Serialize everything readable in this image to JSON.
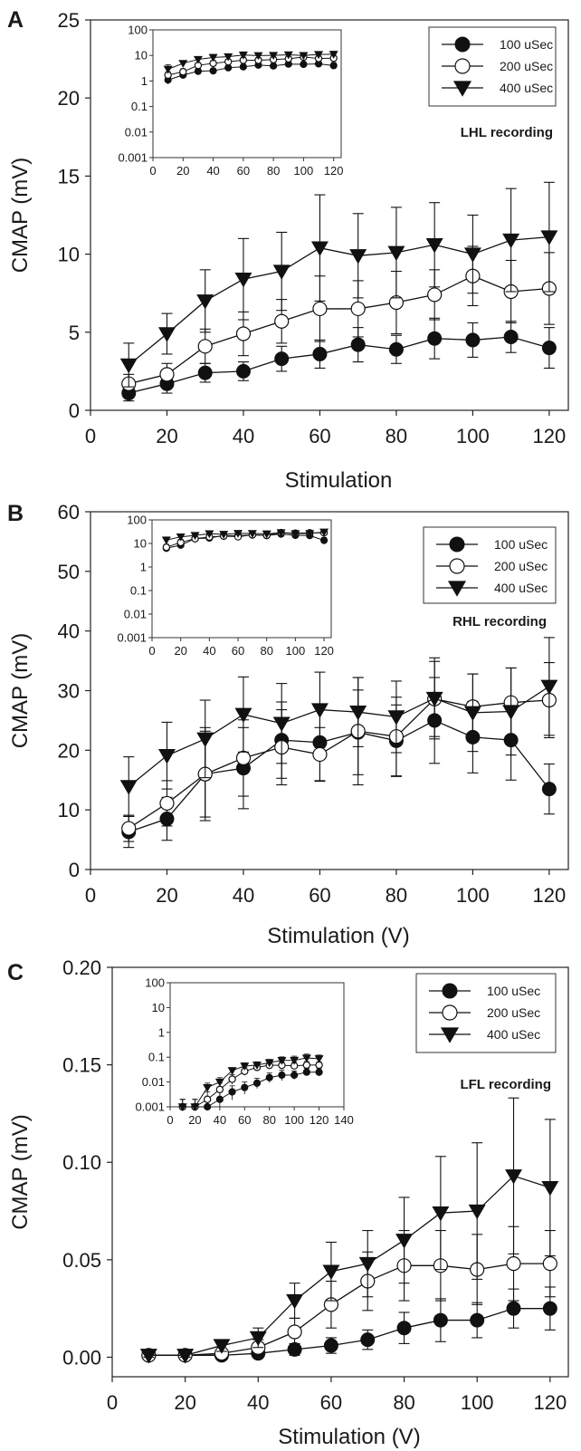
{
  "chart_data": [
    {
      "panel_letter": "A",
      "type": "line",
      "xlabel": "Stimulation",
      "ylabel": "CMAP (mV)",
      "xlim": [
        0,
        125
      ],
      "ylim": [
        0,
        25
      ],
      "xticks": [
        0,
        20,
        40,
        60,
        80,
        100,
        120
      ],
      "yticks": [
        0,
        5,
        10,
        15,
        20,
        25
      ],
      "x": [
        10,
        20,
        30,
        40,
        50,
        60,
        70,
        80,
        90,
        100,
        110,
        120
      ],
      "annotation": "LHL recording",
      "legend_position": "top-right",
      "series": [
        {
          "name": "100 uSec",
          "marker": "filled-circle",
          "values": [
            1.1,
            1.7,
            2.4,
            2.5,
            3.3,
            3.6,
            4.2,
            3.9,
            4.6,
            4.5,
            4.7,
            4.0
          ],
          "errors": [
            0.5,
            0.6,
            0.6,
            0.6,
            0.8,
            0.9,
            1.1,
            0.9,
            1.3,
            1.1,
            1.0,
            1.3
          ]
        },
        {
          "name": "200 uSec",
          "marker": "open-circle",
          "values": [
            1.7,
            2.3,
            4.1,
            4.9,
            5.7,
            6.5,
            6.5,
            6.9,
            7.4,
            8.6,
            7.6,
            7.8
          ],
          "errors": [
            0.6,
            0.7,
            1.1,
            1.4,
            1.4,
            2.1,
            1.8,
            2.0,
            1.6,
            1.9,
            2.0,
            2.3
          ]
        },
        {
          "name": "400 uSec",
          "marker": "filled-triangle-down",
          "values": [
            2.9,
            4.9,
            7.0,
            8.4,
            8.9,
            10.4,
            9.9,
            10.1,
            10.6,
            10.0,
            10.9,
            11.1
          ],
          "errors": [
            1.4,
            1.3,
            2.0,
            2.6,
            2.5,
            3.4,
            2.7,
            2.9,
            2.7,
            2.5,
            3.3,
            3.5
          ]
        }
      ],
      "inset": {
        "scale": "log",
        "xlim": [
          0,
          125
        ],
        "xticks": [
          0,
          20,
          40,
          60,
          80,
          100,
          120
        ],
        "yticks": [
          0.001,
          0.01,
          0.1,
          1,
          10,
          100
        ],
        "ytick_labels": [
          "0.001",
          "0.01",
          "0.1",
          "1",
          "10",
          "100"
        ],
        "ylim": [
          0.001,
          100
        ]
      }
    },
    {
      "panel_letter": "B",
      "type": "line",
      "xlabel": "Stimulation (V)",
      "ylabel": "CMAP (mV)",
      "xlim": [
        0,
        125
      ],
      "ylim": [
        0,
        60
      ],
      "xticks": [
        0,
        20,
        40,
        60,
        80,
        100,
        120
      ],
      "yticks": [
        0,
        10,
        20,
        30,
        40,
        50,
        60
      ],
      "x": [
        10,
        20,
        30,
        40,
        50,
        60,
        70,
        80,
        90,
        100,
        110,
        120
      ],
      "annotation": "RHL recording",
      "legend_position": "top-right",
      "series": [
        {
          "name": "100 uSec",
          "marker": "filled-circle",
          "values": [
            6.3,
            8.5,
            16.0,
            17.0,
            21.7,
            21.3,
            23.0,
            21.6,
            25.0,
            22.2,
            21.7,
            13.5
          ],
          "errors": [
            2.6,
            3.6,
            7.8,
            6.8,
            6.4,
            6.4,
            7.1,
            6.0,
            7.2,
            6.0,
            6.7,
            4.2
          ]
        },
        {
          "name": "200 uSec",
          "marker": "open-circle",
          "values": [
            6.9,
            11.1,
            16.0,
            18.7,
            20.5,
            19.3,
            23.2,
            22.3,
            28.6,
            27.3,
            28.0,
            28.4
          ],
          "errors": [
            2.2,
            3.8,
            7.2,
            6.4,
            6.3,
            4.5,
            9.0,
            6.6,
            6.3,
            5.5,
            5.8,
            6.3
          ]
        },
        {
          "name": "400 uSec",
          "marker": "filled-triangle-down",
          "values": [
            13.9,
            19.1,
            21.9,
            26.0,
            24.5,
            26.8,
            26.4,
            25.6,
            28.7,
            26.3,
            26.5,
            30.7
          ],
          "errors": [
            5.0,
            5.6,
            6.5,
            6.3,
            6.7,
            6.3,
            5.8,
            6.0,
            6.8,
            6.5,
            7.3,
            8.2
          ]
        }
      ],
      "inset": {
        "scale": "log",
        "xlim": [
          0,
          125
        ],
        "xticks": [
          0,
          20,
          40,
          60,
          80,
          100,
          120
        ],
        "yticks": [
          0.001,
          0.01,
          0.1,
          1,
          10,
          100
        ],
        "ytick_labels": [
          "0.001",
          "0.01",
          "0.1",
          "1",
          "10",
          "100"
        ],
        "ylim": [
          0.001,
          100
        ]
      }
    },
    {
      "panel_letter": "C",
      "type": "line",
      "xlabel": "Stimulation (V)",
      "ylabel": "CMAP (mV)",
      "xlim": [
        0,
        125
      ],
      "ylim": [
        -0.01,
        0.2
      ],
      "xticks": [
        0,
        20,
        40,
        60,
        80,
        100,
        120
      ],
      "xtick_labels": [
        "0",
        "20",
        "40",
        "60",
        "80",
        "100",
        "120"
      ],
      "yticks": [
        0,
        0.05,
        0.1,
        0.15,
        0.2
      ],
      "ytick_labels": [
        "0.00",
        "0.05",
        "0.10",
        "0.15",
        "0.20"
      ],
      "x": [
        10,
        20,
        30,
        40,
        50,
        60,
        70,
        80,
        90,
        100,
        110,
        120
      ],
      "annotation": "LFL recording",
      "legend_position": "top-right",
      "series": [
        {
          "name": "100 uSec",
          "marker": "filled-circle",
          "values": [
            0.001,
            0.001,
            0.001,
            0.002,
            0.004,
            0.006,
            0.009,
            0.015,
            0.019,
            0.019,
            0.025,
            0.025
          ],
          "errors": [
            0.001,
            0.001,
            0.001,
            0.002,
            0.003,
            0.004,
            0.005,
            0.008,
            0.011,
            0.009,
            0.01,
            0.011
          ]
        },
        {
          "name": "200 uSec",
          "marker": "open-circle",
          "values": [
            0.001,
            0.001,
            0.002,
            0.005,
            0.013,
            0.027,
            0.039,
            0.047,
            0.047,
            0.045,
            0.048,
            0.048
          ],
          "errors": [
            0.001,
            0.001,
            0.002,
            0.004,
            0.007,
            0.012,
            0.015,
            0.018,
            0.018,
            0.018,
            0.019,
            0.017
          ]
        },
        {
          "name": "400 uSec",
          "marker": "filled-triangle-down",
          "values": [
            0.001,
            0.001,
            0.006,
            0.01,
            0.029,
            0.044,
            0.048,
            0.06,
            0.074,
            0.075,
            0.093,
            0.087
          ],
          "errors": [
            0.001,
            0.001,
            0.003,
            0.005,
            0.009,
            0.015,
            0.017,
            0.022,
            0.029,
            0.035,
            0.04,
            0.035
          ]
        }
      ],
      "inset": {
        "scale": "log",
        "xlim": [
          0,
          140
        ],
        "xticks": [
          0,
          20,
          40,
          60,
          80,
          100,
          120,
          140
        ],
        "yticks": [
          0.001,
          0.01,
          0.1,
          1,
          10,
          100
        ],
        "ytick_labels": [
          "0.001",
          "0.01",
          "0.1",
          "1",
          "10",
          "100"
        ],
        "ylim": [
          0.001,
          100
        ]
      }
    }
  ]
}
